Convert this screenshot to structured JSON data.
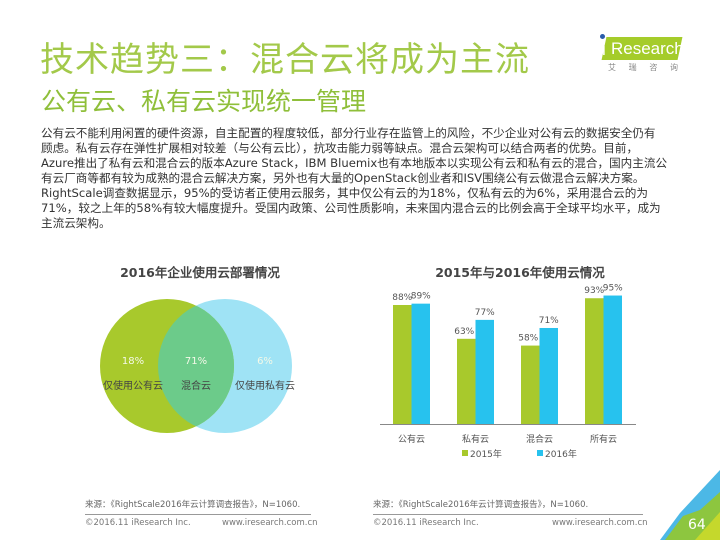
{
  "header": {
    "title": "技术趋势三：混合云将成为主流",
    "subtitle": "公有云、私有云实现统一管理"
  },
  "logo": {
    "brand_i": "i",
    "brand_rest": "Research",
    "chinese": [
      "艾",
      "瑞",
      "咨",
      "询"
    ]
  },
  "body": {
    "lines": [
      "公有云不能利用闲置的硬件资源，自主配置的程度较低，部分行业存在监管上的风险，不少企业对公有云的数据安全仍有",
      "顾虑。私有云存在弹性扩展相对较差（与公有云比），抗攻击能力弱等缺点。混合云架构可以结合两者的优势。目前，",
      "Azure推出了私有云和混合云的版本Azure Stack，IBM Bluemix也有本地版本以实现公有云和私有云的混合，国内主流公",
      "有云厂商等都有较为成熟的混合云解决方案，另外也有大量的OpenStack创业者和ISV围绕公有云做混合云解决方案。",
      "RightScale调查数据显示，95%的受访者正使用云服务，其中仅公有云的为18%，仅私有云的为6%，采用混合云的为",
      "71%，较之上年的58%有较大幅度提升。受国内政策、公司性质影响，未来国内混合云的比例会高于全球平均水平，成为",
      "主流云架构。"
    ]
  },
  "chart_data": [
    {
      "type": "venn",
      "title": "2016年企业使用云部署情况",
      "sets": [
        {
          "name": "仅使用公有云",
          "value": "18%",
          "color": "#a8c92c"
        },
        {
          "name": "混合云",
          "value": "71%",
          "color": "#6ccb8a"
        },
        {
          "name": "仅使用私有云",
          "value": "6%",
          "color": "#9fe3f5"
        }
      ]
    },
    {
      "type": "bar",
      "title": "2015年与2016年使用云情况",
      "categories": [
        "公有云",
        "私有云",
        "混合云",
        "所有云"
      ],
      "series": [
        {
          "name": "2015年",
          "values": [
            88,
            63,
            58,
            93
          ],
          "labels": [
            "88%",
            "63%",
            "58%",
            "93%"
          ],
          "color": "#a8c92c"
        },
        {
          "name": "2016年",
          "values": [
            89,
            77,
            71,
            95
          ],
          "labels": [
            "89%",
            "77%",
            "71%",
            "95%"
          ],
          "color": "#27c2ee"
        }
      ],
      "ylim": [
        0,
        100
      ]
    }
  ],
  "footer": {
    "source": "来源：《RightScale2016年云计算调查报告》，N=1060.",
    "copyright": "©2016.11 iResearch Inc.",
    "url": "www.iresearch.com.cn",
    "page_number": "64"
  }
}
